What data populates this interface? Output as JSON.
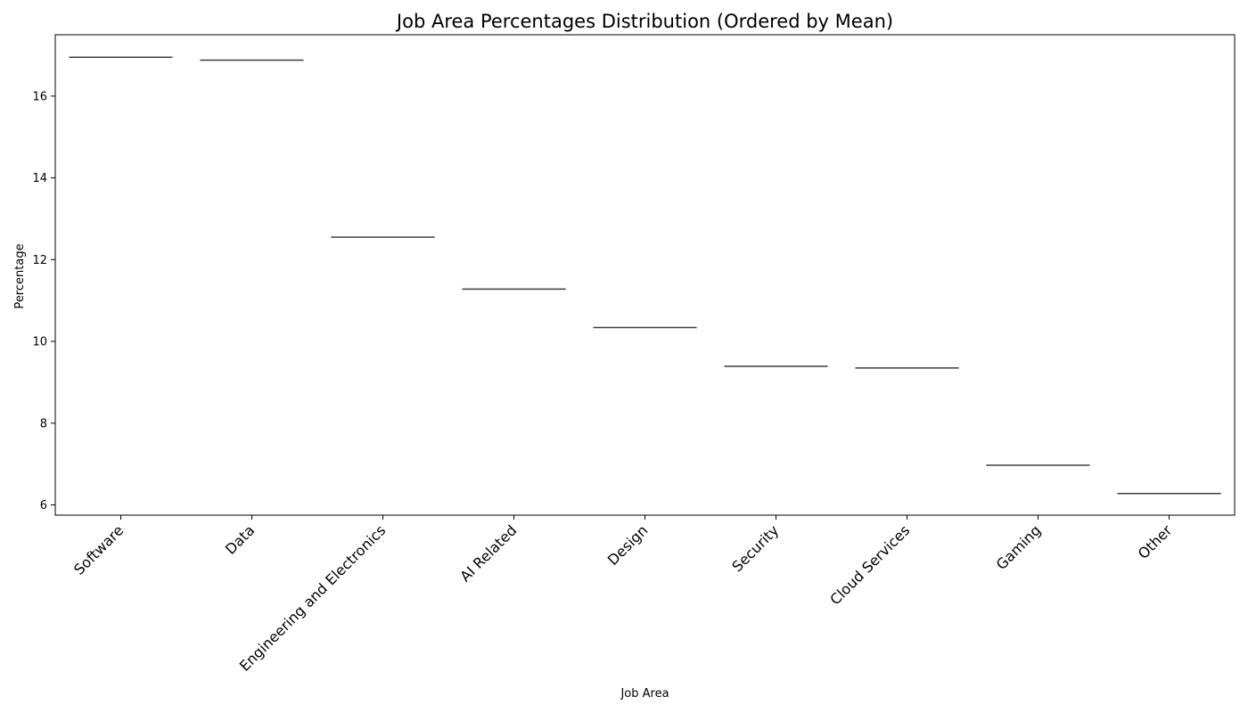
{
  "chart_data": {
    "type": "box",
    "title": "Job Area Percentages Distribution (Ordered by Mean)",
    "xlabel": "Job Area",
    "ylabel": "Percentage",
    "categories": [
      "Software",
      "Data",
      "Engineering and Electronics",
      "AI Related",
      "Design",
      "Security",
      "Cloud Services",
      "Gaming",
      "Other"
    ],
    "values": [
      16.95,
      16.88,
      12.55,
      11.28,
      10.34,
      9.39,
      9.35,
      6.97,
      6.28
    ],
    "yticks": [
      6,
      8,
      10,
      12,
      14,
      16
    ],
    "ylim": [
      5.75,
      17.5
    ],
    "grid": false,
    "legend": "none",
    "colors": {
      "line": "#3f3f3f",
      "axis": "#000000"
    }
  }
}
